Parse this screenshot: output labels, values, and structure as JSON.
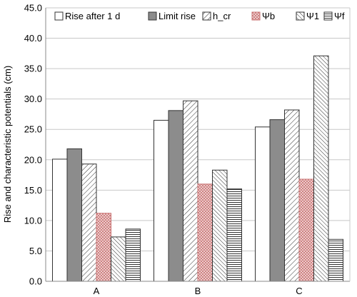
{
  "chart_data": {
    "type": "bar",
    "title": "",
    "xlabel": "",
    "ylabel": "Rise and characteristic potentials (cm)",
    "categories": [
      "A",
      "B",
      "C"
    ],
    "ylim": [
      0,
      45
    ],
    "ytick_step": 5,
    "ytick_labels": [
      "0.0",
      "5.0",
      "10.0",
      "15.0",
      "20.0",
      "25.0",
      "30.0",
      "35.0",
      "40.0",
      "45.0"
    ],
    "grid": true,
    "legend_position": "top",
    "series": [
      {
        "name": "Rise after 1 d",
        "values": [
          20.1,
          26.5,
          25.4
        ],
        "fill": "white"
      },
      {
        "name": "Limit rise",
        "values": [
          21.8,
          28.1,
          26.6
        ],
        "fill": "gray"
      },
      {
        "name": "h_cr",
        "values": [
          19.3,
          29.7,
          28.2
        ],
        "fill": "hatch-forward"
      },
      {
        "name": "Ψb",
        "values": [
          11.2,
          16.0,
          16.8
        ],
        "fill": "crosshatch-red"
      },
      {
        "name": "Ψ1",
        "values": [
          7.3,
          18.3,
          37.1
        ],
        "fill": "hatch-back"
      },
      {
        "name": "Ψf",
        "values": [
          8.6,
          15.2,
          6.9
        ],
        "fill": "horizontal"
      }
    ]
  },
  "colors": {
    "gray_bar": "#8c8c8c",
    "red_hatch": "#c87070",
    "red_bg": "#f3dede",
    "grid": "#c8c8c8",
    "axis": "#888888"
  }
}
